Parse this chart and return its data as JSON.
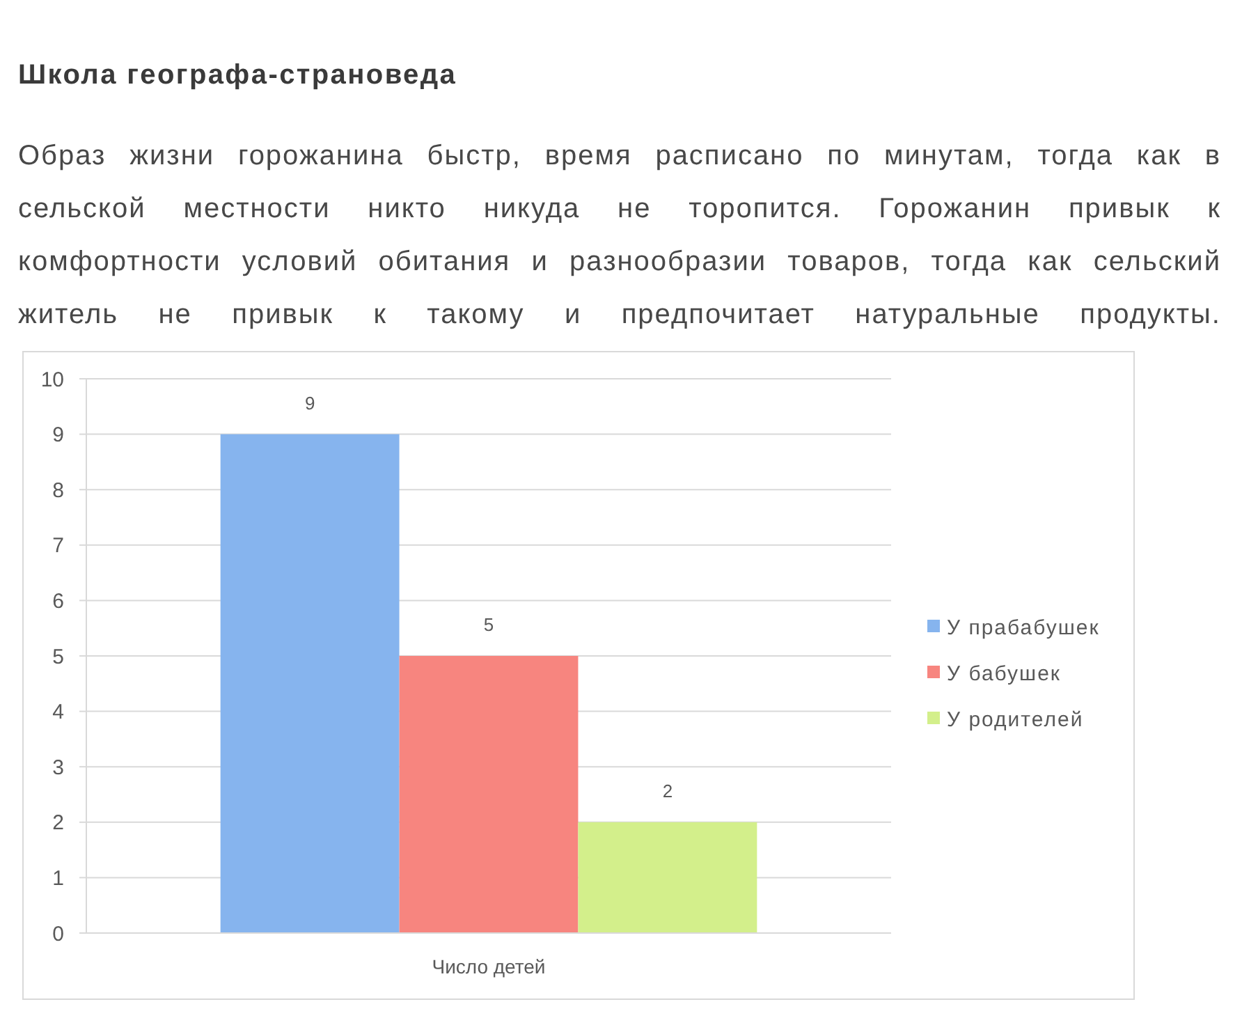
{
  "chart_data": {
    "type": "bar",
    "title": "Школа географа-страноведа",
    "subtitle": "Образ жизни горожанина быстр, время расписано по минутам, тогда как в сельской местности никто никуда не торопится. Горожанин привык к комфортности условий обитания и разнообразии товаров, тогда как сельский житель не привык к такому и предпочитает натуральные продукты.",
    "categories": [
      "Число детей"
    ],
    "series": [
      {
        "name": "У прабабушек",
        "color": "#86b4ee",
        "values": [
          9
        ]
      },
      {
        "name": "У бабушек",
        "color": "#f7857f",
        "values": [
          5
        ]
      },
      {
        "name": "У родителей",
        "color": "#d3ef8b",
        "values": [
          2
        ]
      }
    ],
    "ylim": [
      0,
      10
    ],
    "yticks": [
      0,
      1,
      2,
      3,
      4,
      5,
      6,
      7,
      8,
      9,
      10
    ],
    "grid": "y",
    "legend": "right",
    "data_labels": true
  }
}
